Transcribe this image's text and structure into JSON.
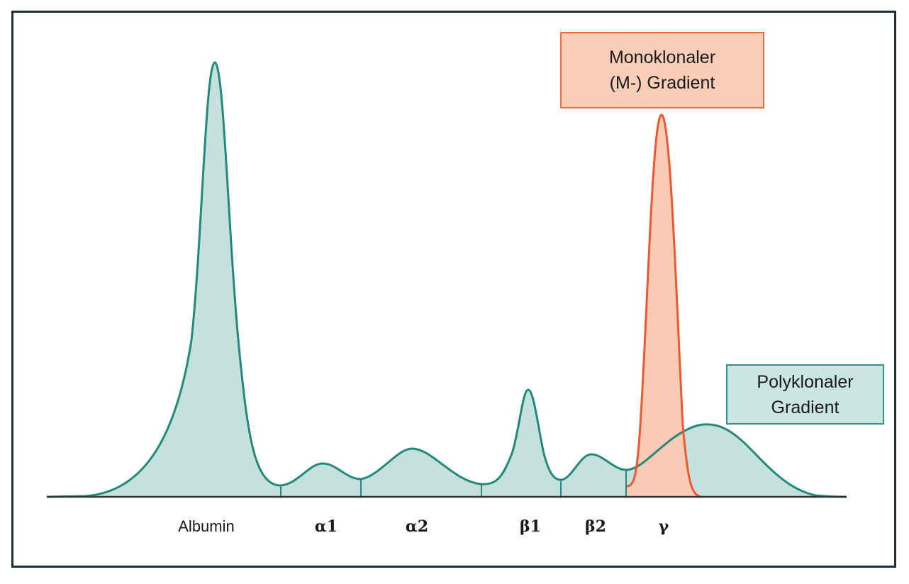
{
  "diagram": {
    "colors": {
      "polyclonal_fill": "#c5e1de",
      "polyclonal_stroke": "#24897c",
      "monoclonal_fill": "#f9cbb5",
      "monoclonal_stroke": "#ea5a32",
      "axis": "#333333",
      "frame": "#1d2f3a"
    },
    "callouts": {
      "monoclonal": "Monoklonaler\n(M-) Gradient",
      "polyclonal": "Polyklonaler\nGradient"
    },
    "fractions": [
      {
        "id": "albumin",
        "label": "Albumin"
      },
      {
        "id": "alpha1",
        "label": "α1"
      },
      {
        "id": "alpha2",
        "label": "α2"
      },
      {
        "id": "beta1",
        "label": "β1"
      },
      {
        "id": "beta2",
        "label": "β2"
      },
      {
        "id": "gamma",
        "label": "γ"
      }
    ]
  }
}
